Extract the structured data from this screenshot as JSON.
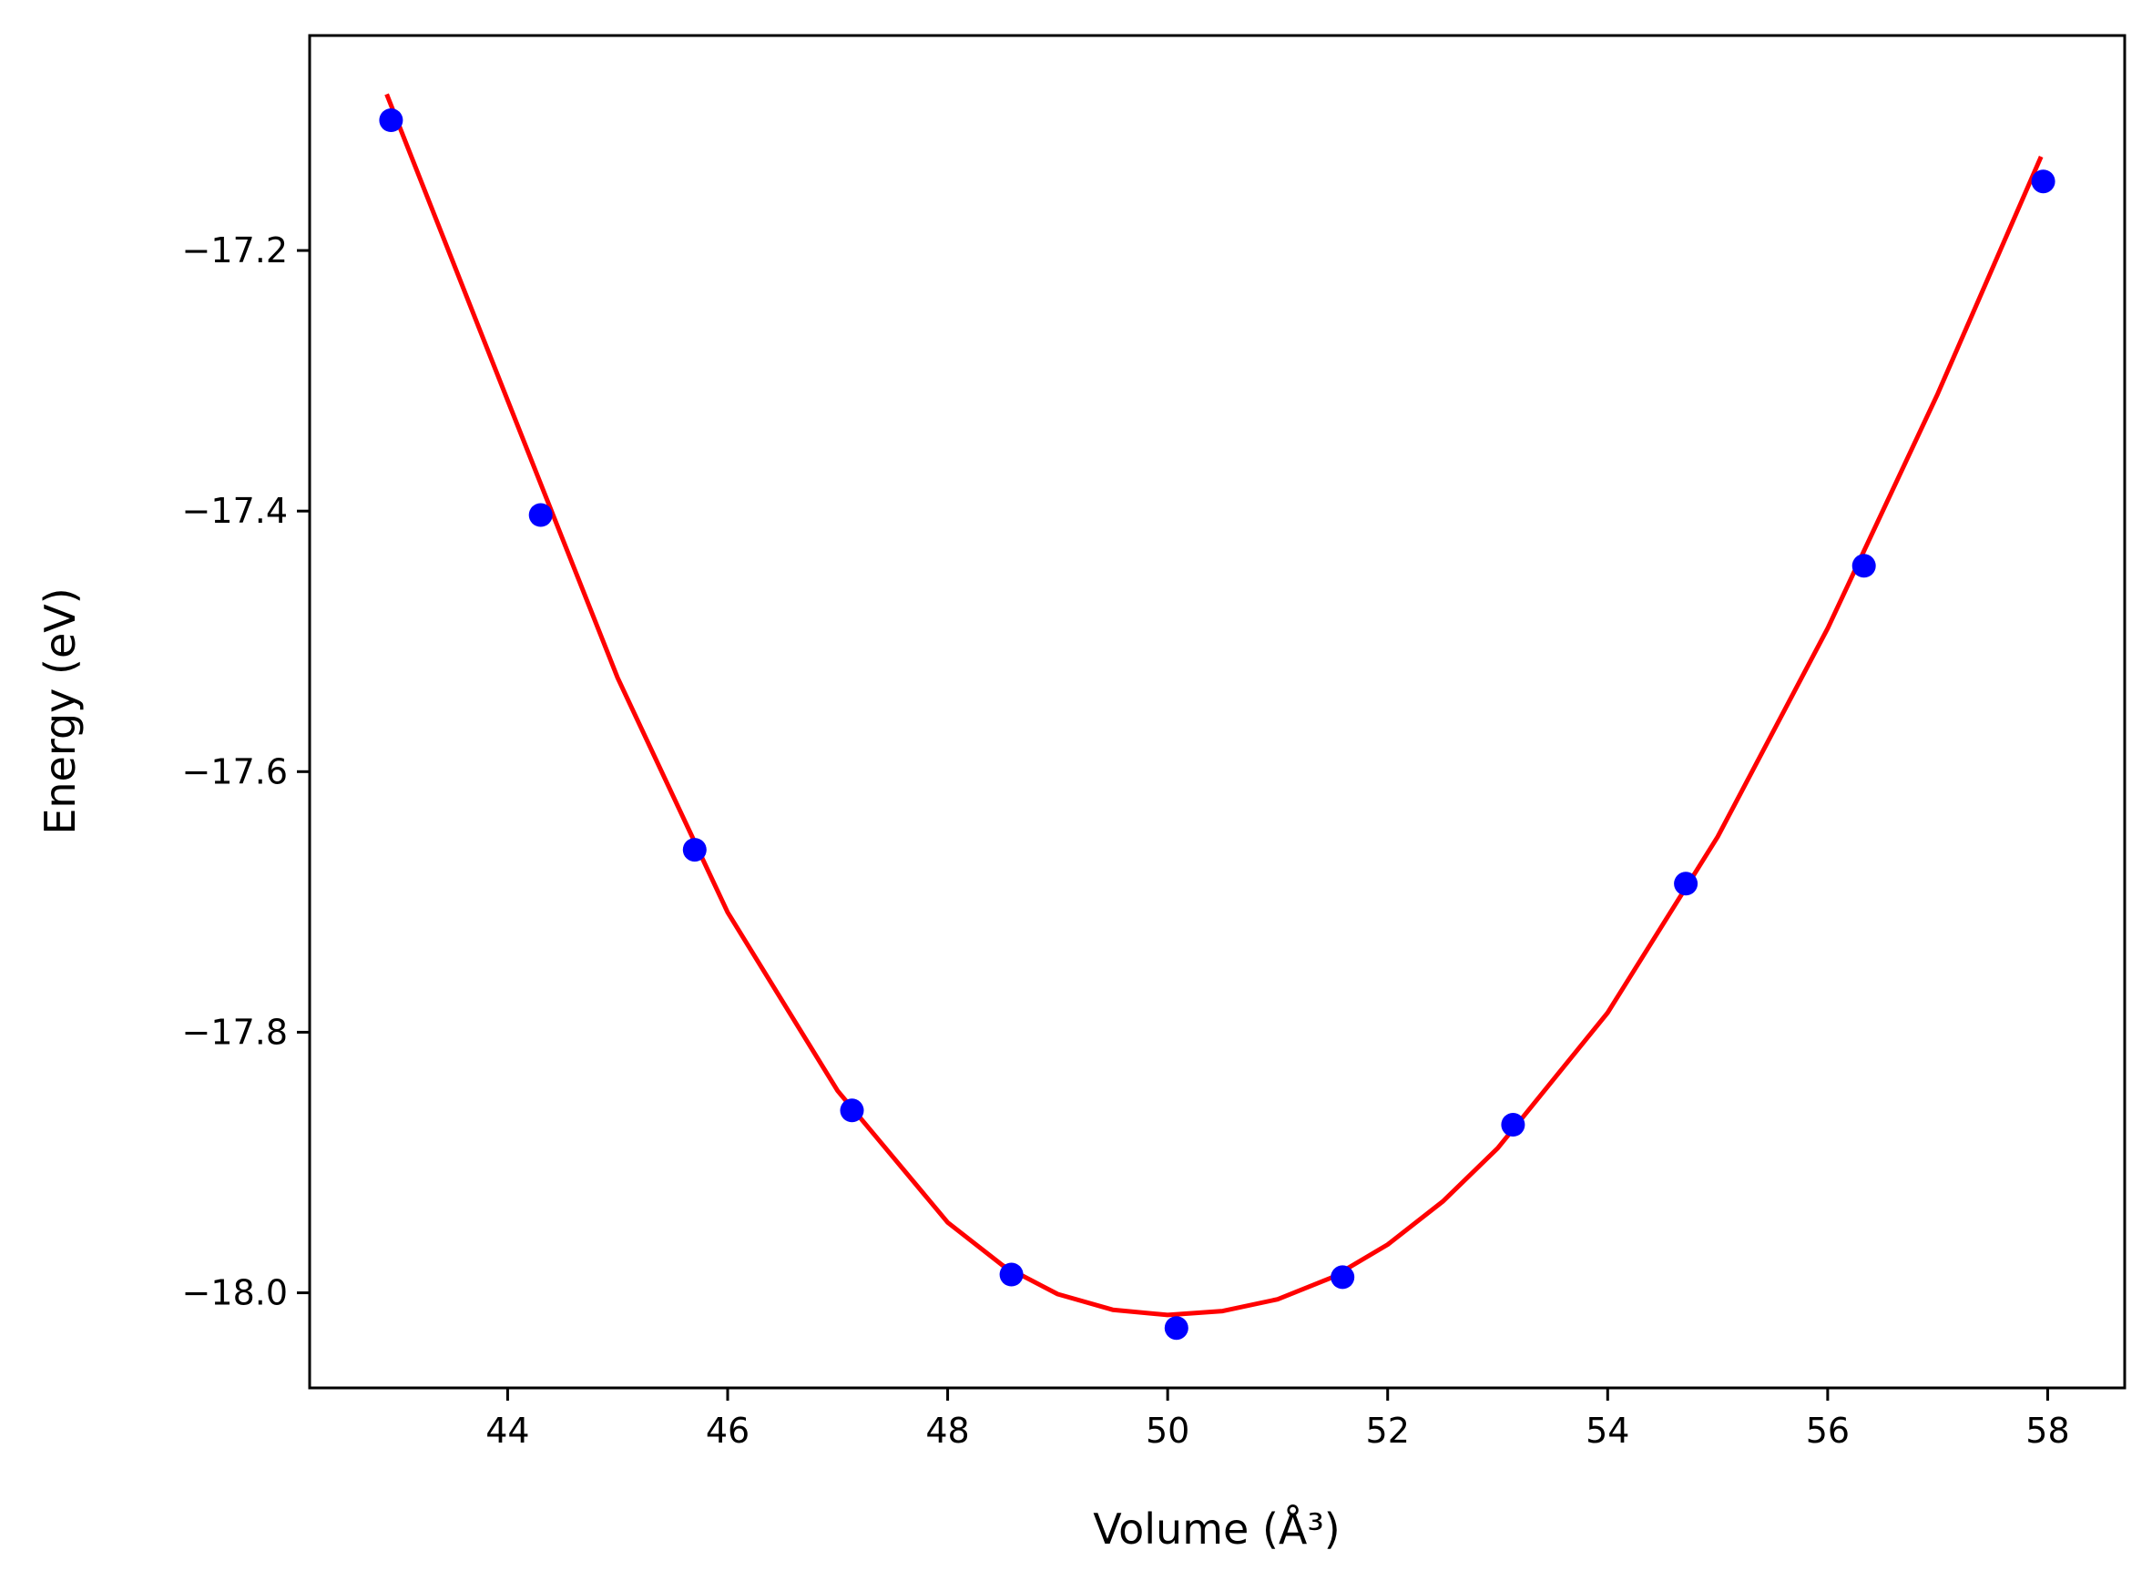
{
  "chart_data": {
    "type": "scatter",
    "xlabel": "Volume (Å³)",
    "ylabel": "Energy (eV)",
    "xlim": [
      42.2,
      58.7
    ],
    "ylim": [
      -18.073,
      -17.035
    ],
    "x_ticks": [
      44,
      46,
      48,
      50,
      52,
      54,
      56,
      58
    ],
    "x_tick_labels": [
      "44",
      "46",
      "48",
      "50",
      "52",
      "54",
      "56",
      "58"
    ],
    "y_ticks": [
      -17.2,
      -17.4,
      -17.6,
      -17.8,
      -18.0
    ],
    "y_tick_labels": [
      "−17.2",
      "−17.4",
      "−17.6",
      "−17.8",
      "−18.0"
    ],
    "grid": false,
    "series": [
      {
        "kind": "scatter",
        "color": "#0000ff",
        "x": [
          42.94,
          44.3,
          45.7,
          47.13,
          48.58,
          50.08,
          51.59,
          53.14,
          54.71,
          56.33,
          57.96
        ],
        "y": [
          -17.1,
          -17.403,
          -17.66,
          -17.86,
          -17.986,
          -18.027,
          -17.988,
          -17.871,
          -17.686,
          -17.442,
          -17.147
        ]
      },
      {
        "kind": "line",
        "color": "#ff0000",
        "x": [
          42.9,
          44.0,
          45.0,
          46.0,
          47.0,
          48.0,
          48.5,
          49.0,
          49.5,
          50.0,
          50.5,
          51.0,
          51.5,
          52.0,
          52.5,
          53.0,
          54.0,
          55.0,
          56.0,
          57.0,
          57.94
        ],
        "y": [
          -17.08,
          -17.315,
          -17.528,
          -17.708,
          -17.845,
          -17.946,
          -17.979,
          -18.001,
          -18.013,
          -18.017,
          -18.014,
          -18.005,
          -17.988,
          -17.963,
          -17.93,
          -17.889,
          -17.785,
          -17.65,
          -17.49,
          -17.31,
          -17.128
        ]
      }
    ]
  }
}
